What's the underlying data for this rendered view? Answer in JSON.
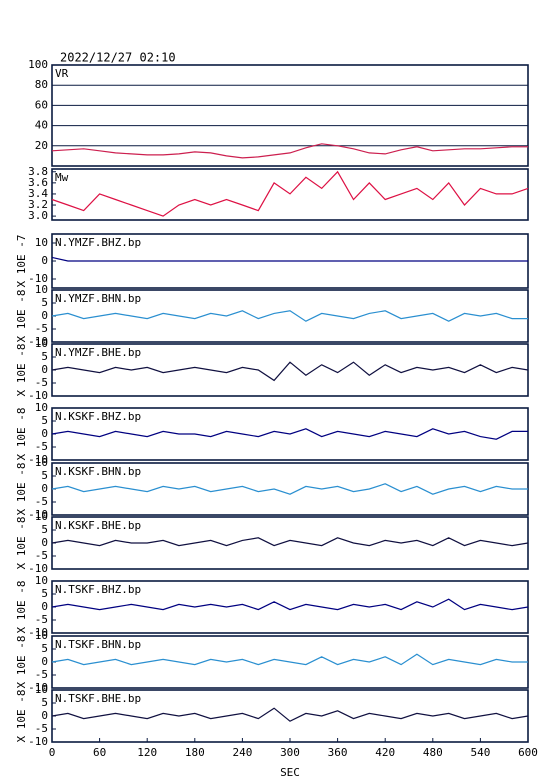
{
  "chart_data": [
    {
      "type": "line",
      "title": "2022/12/27 02:10",
      "label": "VR",
      "grid": true,
      "xlim": [
        0,
        600
      ],
      "ylim": [
        0,
        100
      ],
      "yticks": [
        20,
        40,
        60,
        80,
        100
      ],
      "x": [
        0,
        20,
        40,
        60,
        80,
        100,
        120,
        140,
        160,
        180,
        200,
        220,
        240,
        260,
        280,
        300,
        320,
        340,
        360,
        380,
        400,
        420,
        440,
        460,
        480,
        500,
        520,
        540,
        560,
        580,
        600
      ],
      "series": [
        {
          "color": "#cc1f4f",
          "values": [
            15,
            16,
            17,
            15,
            13,
            12,
            11,
            11,
            12,
            14,
            13,
            10,
            8,
            9,
            11,
            13,
            18,
            22,
            20,
            17,
            13,
            12,
            16,
            19,
            15,
            16,
            17,
            17,
            18,
            19,
            19
          ]
        }
      ]
    },
    {
      "type": "line",
      "label": "Mw",
      "xlim": [
        0,
        600
      ],
      "ylim": [
        2.93,
        3.85
      ],
      "yticks": [
        {
          "value": 3,
          "label": "3.0"
        },
        3.2,
        3.4,
        3.6,
        3.8
      ],
      "x": [
        0,
        20,
        40,
        60,
        80,
        100,
        120,
        140,
        160,
        180,
        200,
        220,
        240,
        260,
        280,
        300,
        320,
        340,
        360,
        380,
        400,
        420,
        440,
        460,
        480,
        500,
        520,
        540,
        560,
        580,
        600
      ],
      "series": [
        {
          "color": "#dd1144",
          "values": [
            3.3,
            3.2,
            3.1,
            3.4,
            3.3,
            3.2,
            3.1,
            3.0,
            3.2,
            3.3,
            3.2,
            3.3,
            3.2,
            3.1,
            3.6,
            3.4,
            3.7,
            3.5,
            3.8,
            3.3,
            3.6,
            3.3,
            3.4,
            3.5,
            3.3,
            3.6,
            3.2,
            3.5,
            3.4,
            3.4,
            3.5
          ]
        }
      ]
    },
    {
      "type": "line",
      "label": "N.YMZF.BHZ.bp",
      "ylabel": "X 10E -7",
      "xlim": [
        0,
        600
      ],
      "ylim": [
        -15,
        15
      ],
      "yticks": [
        -10,
        0,
        10
      ],
      "x": [
        0,
        20,
        40,
        60,
        80,
        100,
        120,
        140,
        160,
        180,
        200,
        220,
        240,
        260,
        280,
        300,
        320,
        340,
        360,
        380,
        400,
        420,
        440,
        460,
        480,
        500,
        520,
        540,
        560,
        580,
        600
      ],
      "series": [
        {
          "color": "#000080",
          "values": [
            2,
            0,
            0,
            0,
            0,
            0,
            0,
            0,
            0,
            0,
            0,
            0,
            0,
            0,
            0,
            0,
            0,
            0,
            0,
            0,
            0,
            0,
            0,
            0,
            0,
            0,
            0,
            0,
            0,
            0,
            0
          ]
        }
      ]
    },
    {
      "type": "line",
      "label": "N.YMZF.BHN.bp",
      "ylabel": "X 10E -8",
      "xlim": [
        0,
        600
      ],
      "ylim": [
        -10,
        10
      ],
      "yticks": [
        -10,
        -5,
        0,
        5,
        10
      ],
      "x": [
        0,
        20,
        40,
        60,
        80,
        100,
        120,
        140,
        160,
        180,
        200,
        220,
        240,
        260,
        280,
        300,
        320,
        340,
        360,
        380,
        400,
        420,
        440,
        460,
        480,
        500,
        520,
        540,
        560,
        580,
        600
      ],
      "series": [
        {
          "color": "#2a8fd0",
          "values": [
            0,
            1,
            -1,
            0,
            1,
            0,
            -1,
            1,
            0,
            -1,
            1,
            0,
            2,
            -1,
            1,
            2,
            -2,
            1,
            0,
            -1,
            1,
            2,
            -1,
            0,
            1,
            -2,
            1,
            0,
            1,
            -1,
            -1
          ]
        }
      ]
    },
    {
      "type": "line",
      "label": "N.YMZF.BHE.bp",
      "ylabel": "X 10E -8",
      "xlim": [
        0,
        600
      ],
      "ylim": [
        -10,
        10
      ],
      "yticks": [
        -10,
        -5,
        0,
        5,
        10
      ],
      "x": [
        0,
        20,
        40,
        60,
        80,
        100,
        120,
        140,
        160,
        180,
        200,
        220,
        240,
        260,
        280,
        300,
        320,
        340,
        360,
        380,
        400,
        420,
        440,
        460,
        480,
        500,
        520,
        540,
        560,
        580,
        600
      ],
      "series": [
        {
          "color": "#101040",
          "values": [
            0,
            1,
            0,
            -1,
            1,
            0,
            1,
            -1,
            0,
            1,
            0,
            -1,
            1,
            0,
            -4,
            3,
            -2,
            2,
            -1,
            3,
            -2,
            2,
            -1,
            1,
            0,
            1,
            -1,
            2,
            -1,
            1,
            0
          ]
        }
      ]
    },
    {
      "type": "line",
      "label": "N.KSKF.BHZ.bp",
      "ylabel": "X 10E -8",
      "xlim": [
        0,
        600
      ],
      "ylim": [
        -10,
        10
      ],
      "yticks": [
        -10,
        -5,
        0,
        5,
        10
      ],
      "x": [
        0,
        20,
        40,
        60,
        80,
        100,
        120,
        140,
        160,
        180,
        200,
        220,
        240,
        260,
        280,
        300,
        320,
        340,
        360,
        380,
        400,
        420,
        440,
        460,
        480,
        500,
        520,
        540,
        560,
        580,
        600
      ],
      "series": [
        {
          "color": "#000080",
          "values": [
            0,
            1,
            0,
            -1,
            1,
            0,
            -1,
            1,
            0,
            0,
            -1,
            1,
            0,
            -1,
            1,
            0,
            2,
            -1,
            1,
            0,
            -1,
            1,
            0,
            -1,
            2,
            0,
            1,
            -1,
            -2,
            1,
            1
          ]
        }
      ]
    },
    {
      "type": "line",
      "label": "N.KSKF.BHN.bp",
      "ylabel": "X 10E -8",
      "xlim": [
        0,
        600
      ],
      "ylim": [
        -10,
        10
      ],
      "yticks": [
        -10,
        -5,
        0,
        5,
        10
      ],
      "x": [
        0,
        20,
        40,
        60,
        80,
        100,
        120,
        140,
        160,
        180,
        200,
        220,
        240,
        260,
        280,
        300,
        320,
        340,
        360,
        380,
        400,
        420,
        440,
        460,
        480,
        500,
        520,
        540,
        560,
        580,
        600
      ],
      "series": [
        {
          "color": "#2a8fd0",
          "values": [
            0,
            1,
            -1,
            0,
            1,
            0,
            -1,
            1,
            0,
            1,
            -1,
            0,
            1,
            -1,
            0,
            -2,
            1,
            0,
            1,
            -1,
            0,
            2,
            -1,
            1,
            -2,
            0,
            1,
            -1,
            1,
            0,
            0
          ]
        }
      ]
    },
    {
      "type": "line",
      "label": "N.KSKF.BHE.bp",
      "ylabel": "X 10E -8",
      "xlim": [
        0,
        600
      ],
      "ylim": [
        -10,
        10
      ],
      "yticks": [
        -10,
        -5,
        0,
        5,
        10
      ],
      "x": [
        0,
        20,
        40,
        60,
        80,
        100,
        120,
        140,
        160,
        180,
        200,
        220,
        240,
        260,
        280,
        300,
        320,
        340,
        360,
        380,
        400,
        420,
        440,
        460,
        480,
        500,
        520,
        540,
        560,
        580,
        600
      ],
      "series": [
        {
          "color": "#101040",
          "values": [
            0,
            1,
            0,
            -1,
            1,
            0,
            0,
            1,
            -1,
            0,
            1,
            -1,
            1,
            2,
            -1,
            1,
            0,
            -1,
            2,
            0,
            -1,
            1,
            0,
            1,
            -1,
            2,
            -1,
            1,
            0,
            -1,
            0
          ]
        }
      ]
    },
    {
      "type": "line",
      "label": "N.TSKF.BHZ.bp",
      "ylabel": "X 10E -8",
      "xlim": [
        0,
        600
      ],
      "ylim": [
        -10,
        10
      ],
      "yticks": [
        -10,
        -5,
        0,
        5,
        10
      ],
      "x": [
        0,
        20,
        40,
        60,
        80,
        100,
        120,
        140,
        160,
        180,
        200,
        220,
        240,
        260,
        280,
        300,
        320,
        340,
        360,
        380,
        400,
        420,
        440,
        460,
        480,
        500,
        520,
        540,
        560,
        580,
        600
      ],
      "series": [
        {
          "color": "#000080",
          "values": [
            0,
            1,
            0,
            -1,
            0,
            1,
            0,
            -1,
            1,
            0,
            1,
            0,
            1,
            -1,
            2,
            -1,
            1,
            0,
            -1,
            1,
            0,
            1,
            -1,
            2,
            0,
            3,
            -1,
            1,
            0,
            -1,
            0
          ]
        }
      ]
    },
    {
      "type": "line",
      "label": "N.TSKF.BHN.bp",
      "ylabel": "X 10E -8",
      "xlim": [
        0,
        600
      ],
      "ylim": [
        -10,
        10
      ],
      "yticks": [
        -10,
        -5,
        0,
        5,
        10
      ],
      "x": [
        0,
        20,
        40,
        60,
        80,
        100,
        120,
        140,
        160,
        180,
        200,
        220,
        240,
        260,
        280,
        300,
        320,
        340,
        360,
        380,
        400,
        420,
        440,
        460,
        480,
        500,
        520,
        540,
        560,
        580,
        600
      ],
      "series": [
        {
          "color": "#2a8fd0",
          "values": [
            0,
            1,
            -1,
            0,
            1,
            -1,
            0,
            1,
            0,
            -1,
            1,
            0,
            1,
            -1,
            1,
            0,
            -1,
            2,
            -1,
            1,
            0,
            2,
            -1,
            3,
            -1,
            1,
            0,
            -1,
            1,
            0,
            0
          ]
        }
      ]
    },
    {
      "type": "line",
      "label": "N.TSKF.BHE.bp",
      "ylabel": "X 10E -8",
      "xlabel": "SEC",
      "xlim": [
        0,
        600
      ],
      "xticks": [
        0,
        60,
        120,
        180,
        240,
        300,
        360,
        420,
        480,
        540,
        600
      ],
      "ylim": [
        -10,
        10
      ],
      "yticks": [
        -10,
        -5,
        0,
        5,
        10
      ],
      "x": [
        0,
        20,
        40,
        60,
        80,
        100,
        120,
        140,
        160,
        180,
        200,
        220,
        240,
        260,
        280,
        300,
        320,
        340,
        360,
        380,
        400,
        420,
        440,
        460,
        480,
        500,
        520,
        540,
        560,
        580,
        600
      ],
      "series": [
        {
          "color": "#101040",
          "values": [
            0,
            1,
            -1,
            0,
            1,
            0,
            -1,
            1,
            0,
            1,
            -1,
            0,
            1,
            -1,
            3,
            -2,
            1,
            0,
            2,
            -1,
            1,
            0,
            -1,
            1,
            0,
            1,
            -1,
            0,
            1,
            -1,
            0
          ]
        }
      ]
    }
  ]
}
